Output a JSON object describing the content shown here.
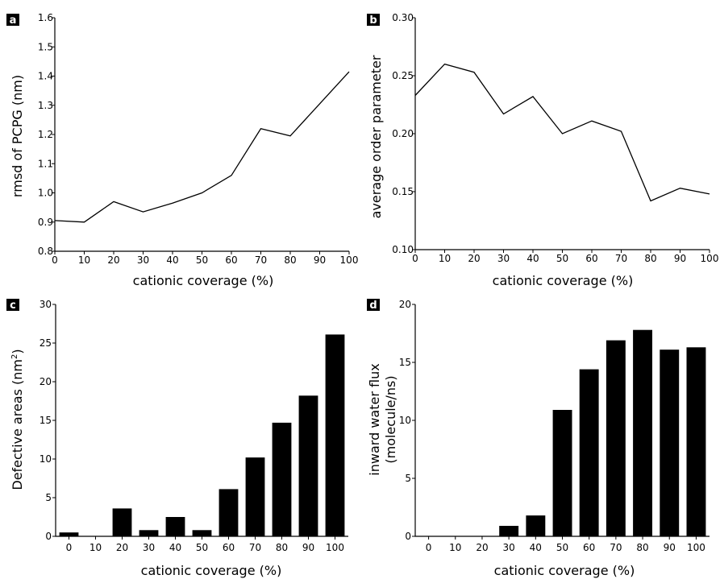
{
  "chart_data": [
    {
      "panel": "a",
      "type": "line",
      "xlabel": "cationic coverage (%)",
      "ylabel": "rmsd of PCPG (nm)",
      "x": [
        0,
        10,
        20,
        30,
        40,
        50,
        60,
        70,
        80,
        90,
        100
      ],
      "values": [
        0.905,
        0.9,
        0.97,
        0.935,
        0.965,
        1.0,
        1.06,
        1.22,
        1.195,
        1.305,
        1.415
      ],
      "xlim": [
        0,
        100
      ],
      "ylim": [
        0.8,
        1.6
      ],
      "xticks": [
        "0",
        "10",
        "20",
        "30",
        "40",
        "50",
        "60",
        "70",
        "80",
        "90",
        "100"
      ],
      "yticks": [
        "0.8",
        "0.9",
        "1.0",
        "1.1",
        "1.2",
        "1.3",
        "1.4",
        "1.5",
        "1.6"
      ],
      "grid": false,
      "color": "#000000"
    },
    {
      "panel": "b",
      "type": "line",
      "xlabel": "cationic coverage (%)",
      "ylabel": "average order parameter",
      "x": [
        0,
        10,
        20,
        30,
        40,
        50,
        60,
        70,
        80,
        90,
        100
      ],
      "values": [
        0.233,
        0.26,
        0.253,
        0.217,
        0.232,
        0.2,
        0.211,
        0.202,
        0.142,
        0.153,
        0.148
      ],
      "xlim": [
        0,
        100
      ],
      "ylim": [
        0.1,
        0.3
      ],
      "xticks": [
        "0",
        "10",
        "20",
        "30",
        "40",
        "50",
        "60",
        "70",
        "80",
        "90",
        "100"
      ],
      "yticks": [
        "0.10",
        "0.15",
        "0.20",
        "0.25",
        "0.30"
      ],
      "grid": false,
      "color": "#000000"
    },
    {
      "panel": "c",
      "type": "bar",
      "xlabel": "cationic coverage (%)",
      "ylabel_main": "Defective areas (nm",
      "ylabel_sup": "2",
      "ylabel_end": ")",
      "categories": [
        "0",
        "10",
        "20",
        "30",
        "40",
        "50",
        "60",
        "70",
        "80",
        "90",
        "100"
      ],
      "values": [
        0.5,
        0,
        3.6,
        0.8,
        2.5,
        0.8,
        6.1,
        10.2,
        14.7,
        18.2,
        26.1
      ],
      "ylim": [
        0,
        30
      ],
      "yticks": [
        "0",
        "5",
        "10",
        "15",
        "20",
        "25",
        "30"
      ],
      "grid": false,
      "color": "#000000"
    },
    {
      "panel": "d",
      "type": "bar",
      "xlabel": "cationic coverage (%)",
      "ylabel_line1": "inward water flux",
      "ylabel_line2": "(molecule/ns)",
      "categories": [
        "0",
        "10",
        "20",
        "30",
        "40",
        "50",
        "60",
        "70",
        "80",
        "90",
        "100"
      ],
      "values": [
        0,
        0,
        0,
        0.9,
        1.8,
        10.9,
        14.4,
        16.9,
        17.8,
        16.1,
        16.3
      ],
      "ylim": [
        0,
        20
      ],
      "yticks": [
        "0",
        "5",
        "10",
        "15",
        "20"
      ],
      "grid": false,
      "color": "#000000"
    }
  ]
}
